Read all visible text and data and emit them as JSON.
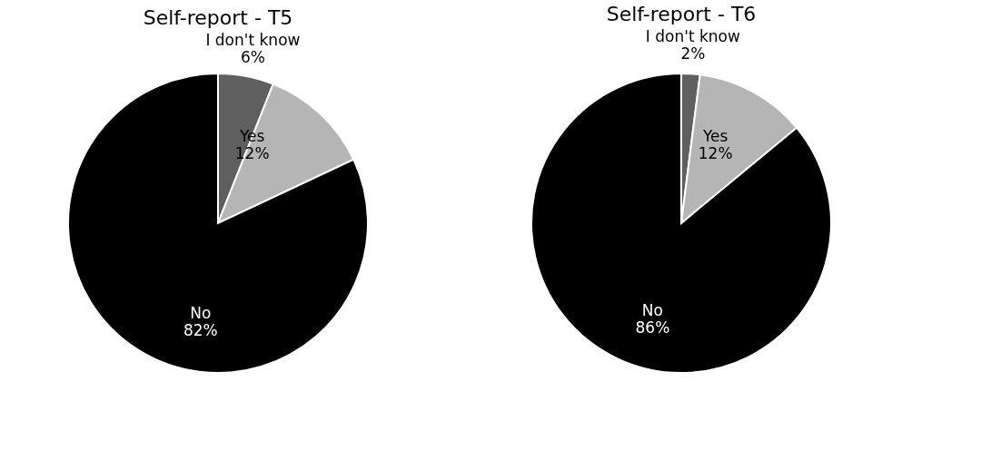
{
  "chart_data": [
    {
      "type": "pie",
      "title": "Self-report - T5",
      "categories": [
        "I don't know",
        "Yes",
        "No"
      ],
      "values": [
        6,
        12,
        82
      ],
      "colors": [
        "#5f5f5f",
        "#b5b5b5",
        "#000000"
      ],
      "value_labels": [
        "6%",
        "12%",
        "82%"
      ]
    },
    {
      "type": "pie",
      "title": "Self-report - T6",
      "categories": [
        "I don't know",
        "Yes",
        "No"
      ],
      "values": [
        2,
        12,
        86
      ],
      "colors": [
        "#5f5f5f",
        "#b5b5b5",
        "#000000"
      ],
      "value_labels": [
        "2%",
        "12%",
        "86%"
      ]
    }
  ]
}
